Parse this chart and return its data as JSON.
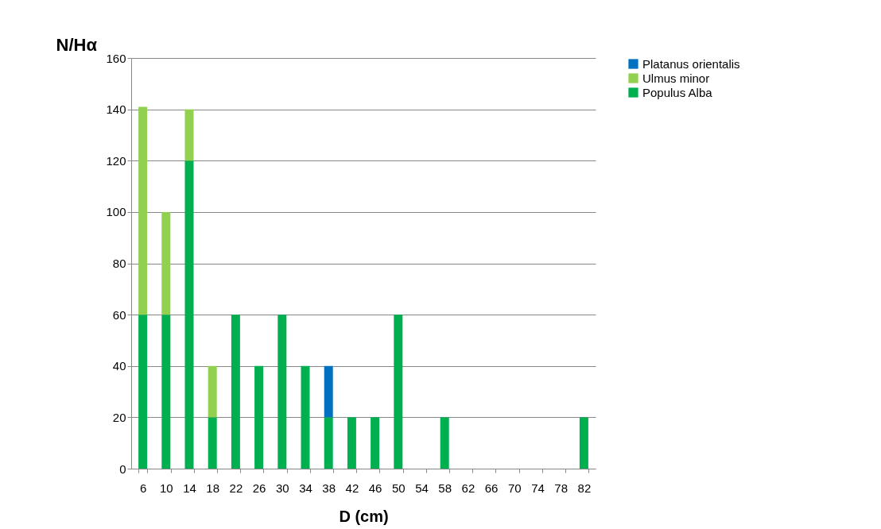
{
  "chart_data": {
    "type": "bar",
    "stacked": true,
    "xlabel": "D (cm)",
    "ylabel": "N/Hα",
    "categories": [
      "6",
      "10",
      "14",
      "18",
      "22",
      "26",
      "30",
      "34",
      "38",
      "42",
      "46",
      "50",
      "54",
      "58",
      "62",
      "66",
      "70",
      "74",
      "78",
      "82"
    ],
    "series": [
      {
        "name": "Populus Alba",
        "color": "#00b050",
        "values": [
          60,
          60,
          120,
          20,
          60,
          40,
          60,
          40,
          20,
          20,
          20,
          60,
          0,
          20,
          0,
          0,
          0,
          0,
          0,
          20
        ]
      },
      {
        "name": "Ulmus minor",
        "color": "#92d050",
        "values": [
          81,
          40,
          20,
          20,
          0,
          0,
          0,
          0,
          0,
          0,
          0,
          0,
          0,
          0,
          0,
          0,
          0,
          0,
          0,
          0
        ]
      },
      {
        "name": "Platanus orientalis",
        "color": "#0070c0",
        "values": [
          0,
          0,
          0,
          0,
          0,
          0,
          0,
          0,
          20,
          0,
          0,
          0,
          0,
          0,
          0,
          0,
          0,
          0,
          0,
          0
        ]
      }
    ],
    "ylim": [
      0,
      160
    ],
    "yticks": [
      0,
      20,
      40,
      60,
      80,
      100,
      120,
      140,
      160
    ],
    "grid": "y",
    "legend": "right"
  }
}
